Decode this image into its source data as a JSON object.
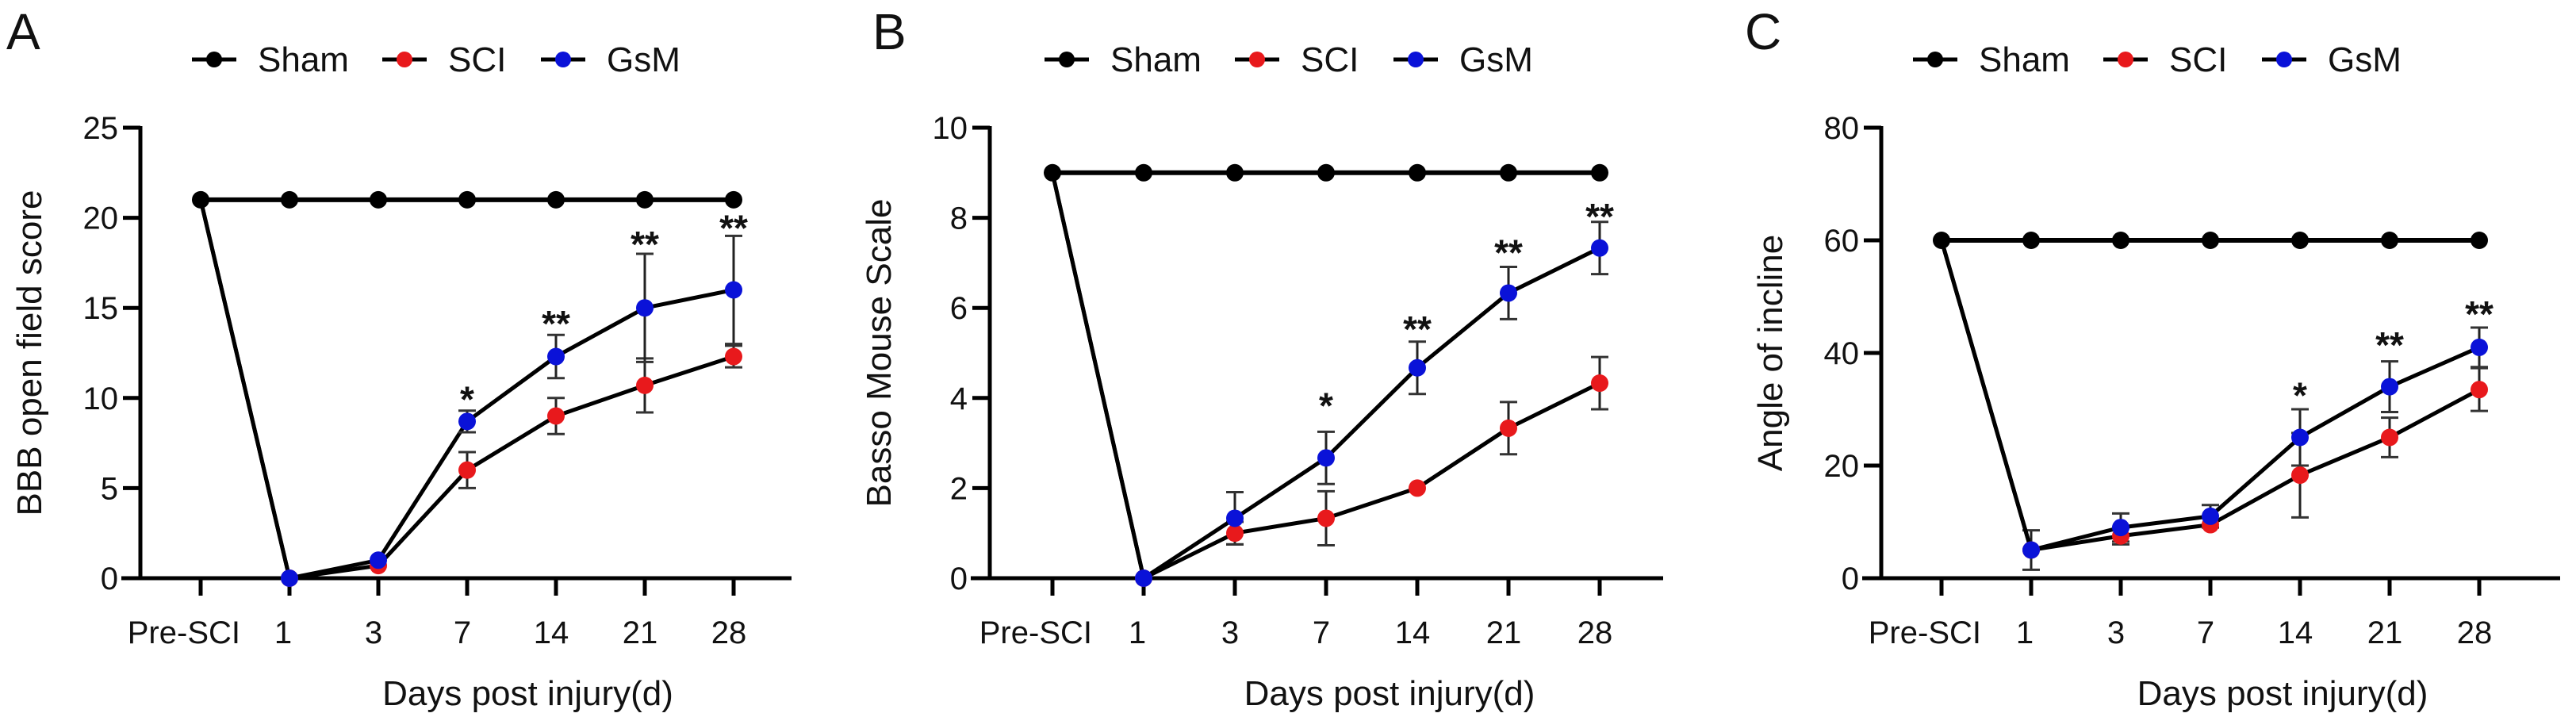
{
  "chart_data": [
    {
      "type": "line",
      "panel": "A",
      "title": "",
      "xlabel": "Days post injury(d)",
      "ylabel": "BBB open field score",
      "categories": [
        "Pre-SCI",
        "1",
        "3",
        "7",
        "14",
        "21",
        "28"
      ],
      "ylim": [
        0,
        25
      ],
      "yticks": [
        0,
        5,
        10,
        15,
        20,
        25
      ],
      "legend": {
        "placement": "top",
        "entries": [
          "Sham",
          "SCI",
          "GsM"
        ]
      },
      "series": [
        {
          "name": "Sham",
          "color": "#000000",
          "values": [
            21,
            21,
            21,
            21,
            21,
            21,
            21
          ],
          "errors": [
            0,
            0,
            0,
            0,
            0,
            0,
            0
          ]
        },
        {
          "name": "SCI",
          "color": "#e8191c",
          "values": [
            21,
            0,
            0.7,
            6,
            9,
            10.7,
            12.3
          ],
          "errors": [
            0,
            0,
            0,
            1,
            1,
            1.5,
            0.6
          ]
        },
        {
          "name": "GsM",
          "color": "#0a12d8",
          "values": [
            21,
            0,
            1,
            8.7,
            12.3,
            15,
            16
          ],
          "errors": [
            0,
            0,
            0,
            0.6,
            1.2,
            3,
            3
          ]
        }
      ],
      "annotations": [
        {
          "category": "7",
          "text": "*",
          "y": 10.1
        },
        {
          "category": "14",
          "text": "**",
          "y": 14.3
        },
        {
          "category": "21",
          "text": "**",
          "y": 18.7
        },
        {
          "category": "28",
          "text": "**",
          "y": 19.6
        }
      ],
      "grid": false
    },
    {
      "type": "line",
      "panel": "B",
      "title": "",
      "xlabel": "Days post injury(d)",
      "ylabel": "Basso Mouse Scale",
      "categories": [
        "Pre-SCI",
        "1",
        "3",
        "7",
        "14",
        "21",
        "28"
      ],
      "ylim": [
        0,
        10
      ],
      "yticks": [
        0,
        2,
        4,
        6,
        8,
        10
      ],
      "legend": {
        "placement": "top",
        "entries": [
          "Sham",
          "SCI",
          "GsM"
        ]
      },
      "series": [
        {
          "name": "Sham",
          "color": "#000000",
          "values": [
            9,
            9,
            9,
            9,
            9,
            9,
            9
          ],
          "errors": [
            0,
            0,
            0,
            0,
            0,
            0,
            0
          ]
        },
        {
          "name": "SCI",
          "color": "#e8191c",
          "values": [
            9,
            0,
            1,
            1.33,
            2,
            3.33,
            4.33
          ],
          "errors": [
            0,
            0,
            0.25,
            0.6,
            0,
            0.58,
            0.58
          ]
        },
        {
          "name": "GsM",
          "color": "#0a12d8",
          "values": [
            9,
            0,
            1.33,
            2.67,
            4.67,
            6.33,
            7.33
          ],
          "errors": [
            0,
            0,
            0.58,
            0.58,
            0.58,
            0.58,
            0.58
          ]
        }
      ],
      "annotations": [
        {
          "category": "7",
          "text": "*",
          "y": 3.9
        },
        {
          "category": "14",
          "text": "**",
          "y": 5.6
        },
        {
          "category": "21",
          "text": "**",
          "y": 7.3
        },
        {
          "category": "28",
          "text": "**",
          "y": 8.1
        }
      ],
      "grid": false
    },
    {
      "type": "line",
      "panel": "C",
      "title": "",
      "xlabel": "Days post injury(d)",
      "ylabel": "Angle of incline",
      "categories": [
        "Pre-SCI",
        "1",
        "3",
        "7",
        "14",
        "21",
        "28"
      ],
      "ylim": [
        0,
        80
      ],
      "yticks": [
        0,
        20,
        40,
        60,
        80
      ],
      "legend": {
        "placement": "top",
        "entries": [
          "Sham",
          "SCI",
          "GsM"
        ]
      },
      "series": [
        {
          "name": "Sham",
          "color": "#000000",
          "values": [
            60,
            60,
            60,
            60,
            60,
            60,
            60
          ],
          "errors": [
            0,
            0,
            0,
            0,
            0,
            0,
            0
          ]
        },
        {
          "name": "SCI",
          "color": "#e8191c",
          "values": [
            60,
            5,
            7.5,
            9.5,
            18.3,
            25,
            33.5
          ],
          "errors": [
            0,
            3.5,
            1.5,
            0,
            7.5,
            3.5,
            3.8
          ]
        },
        {
          "name": "GsM",
          "color": "#0a12d8",
          "values": [
            60,
            5,
            9,
            11,
            25,
            34,
            41
          ],
          "errors": [
            0,
            0,
            2.5,
            2,
            5,
            4.5,
            3.5
          ]
        }
      ],
      "annotations": [
        {
          "category": "14",
          "text": "*",
          "y": 33
        },
        {
          "category": "21",
          "text": "**",
          "y": 42
        },
        {
          "category": "28",
          "text": "**",
          "y": 47.5
        }
      ],
      "grid": false
    }
  ]
}
